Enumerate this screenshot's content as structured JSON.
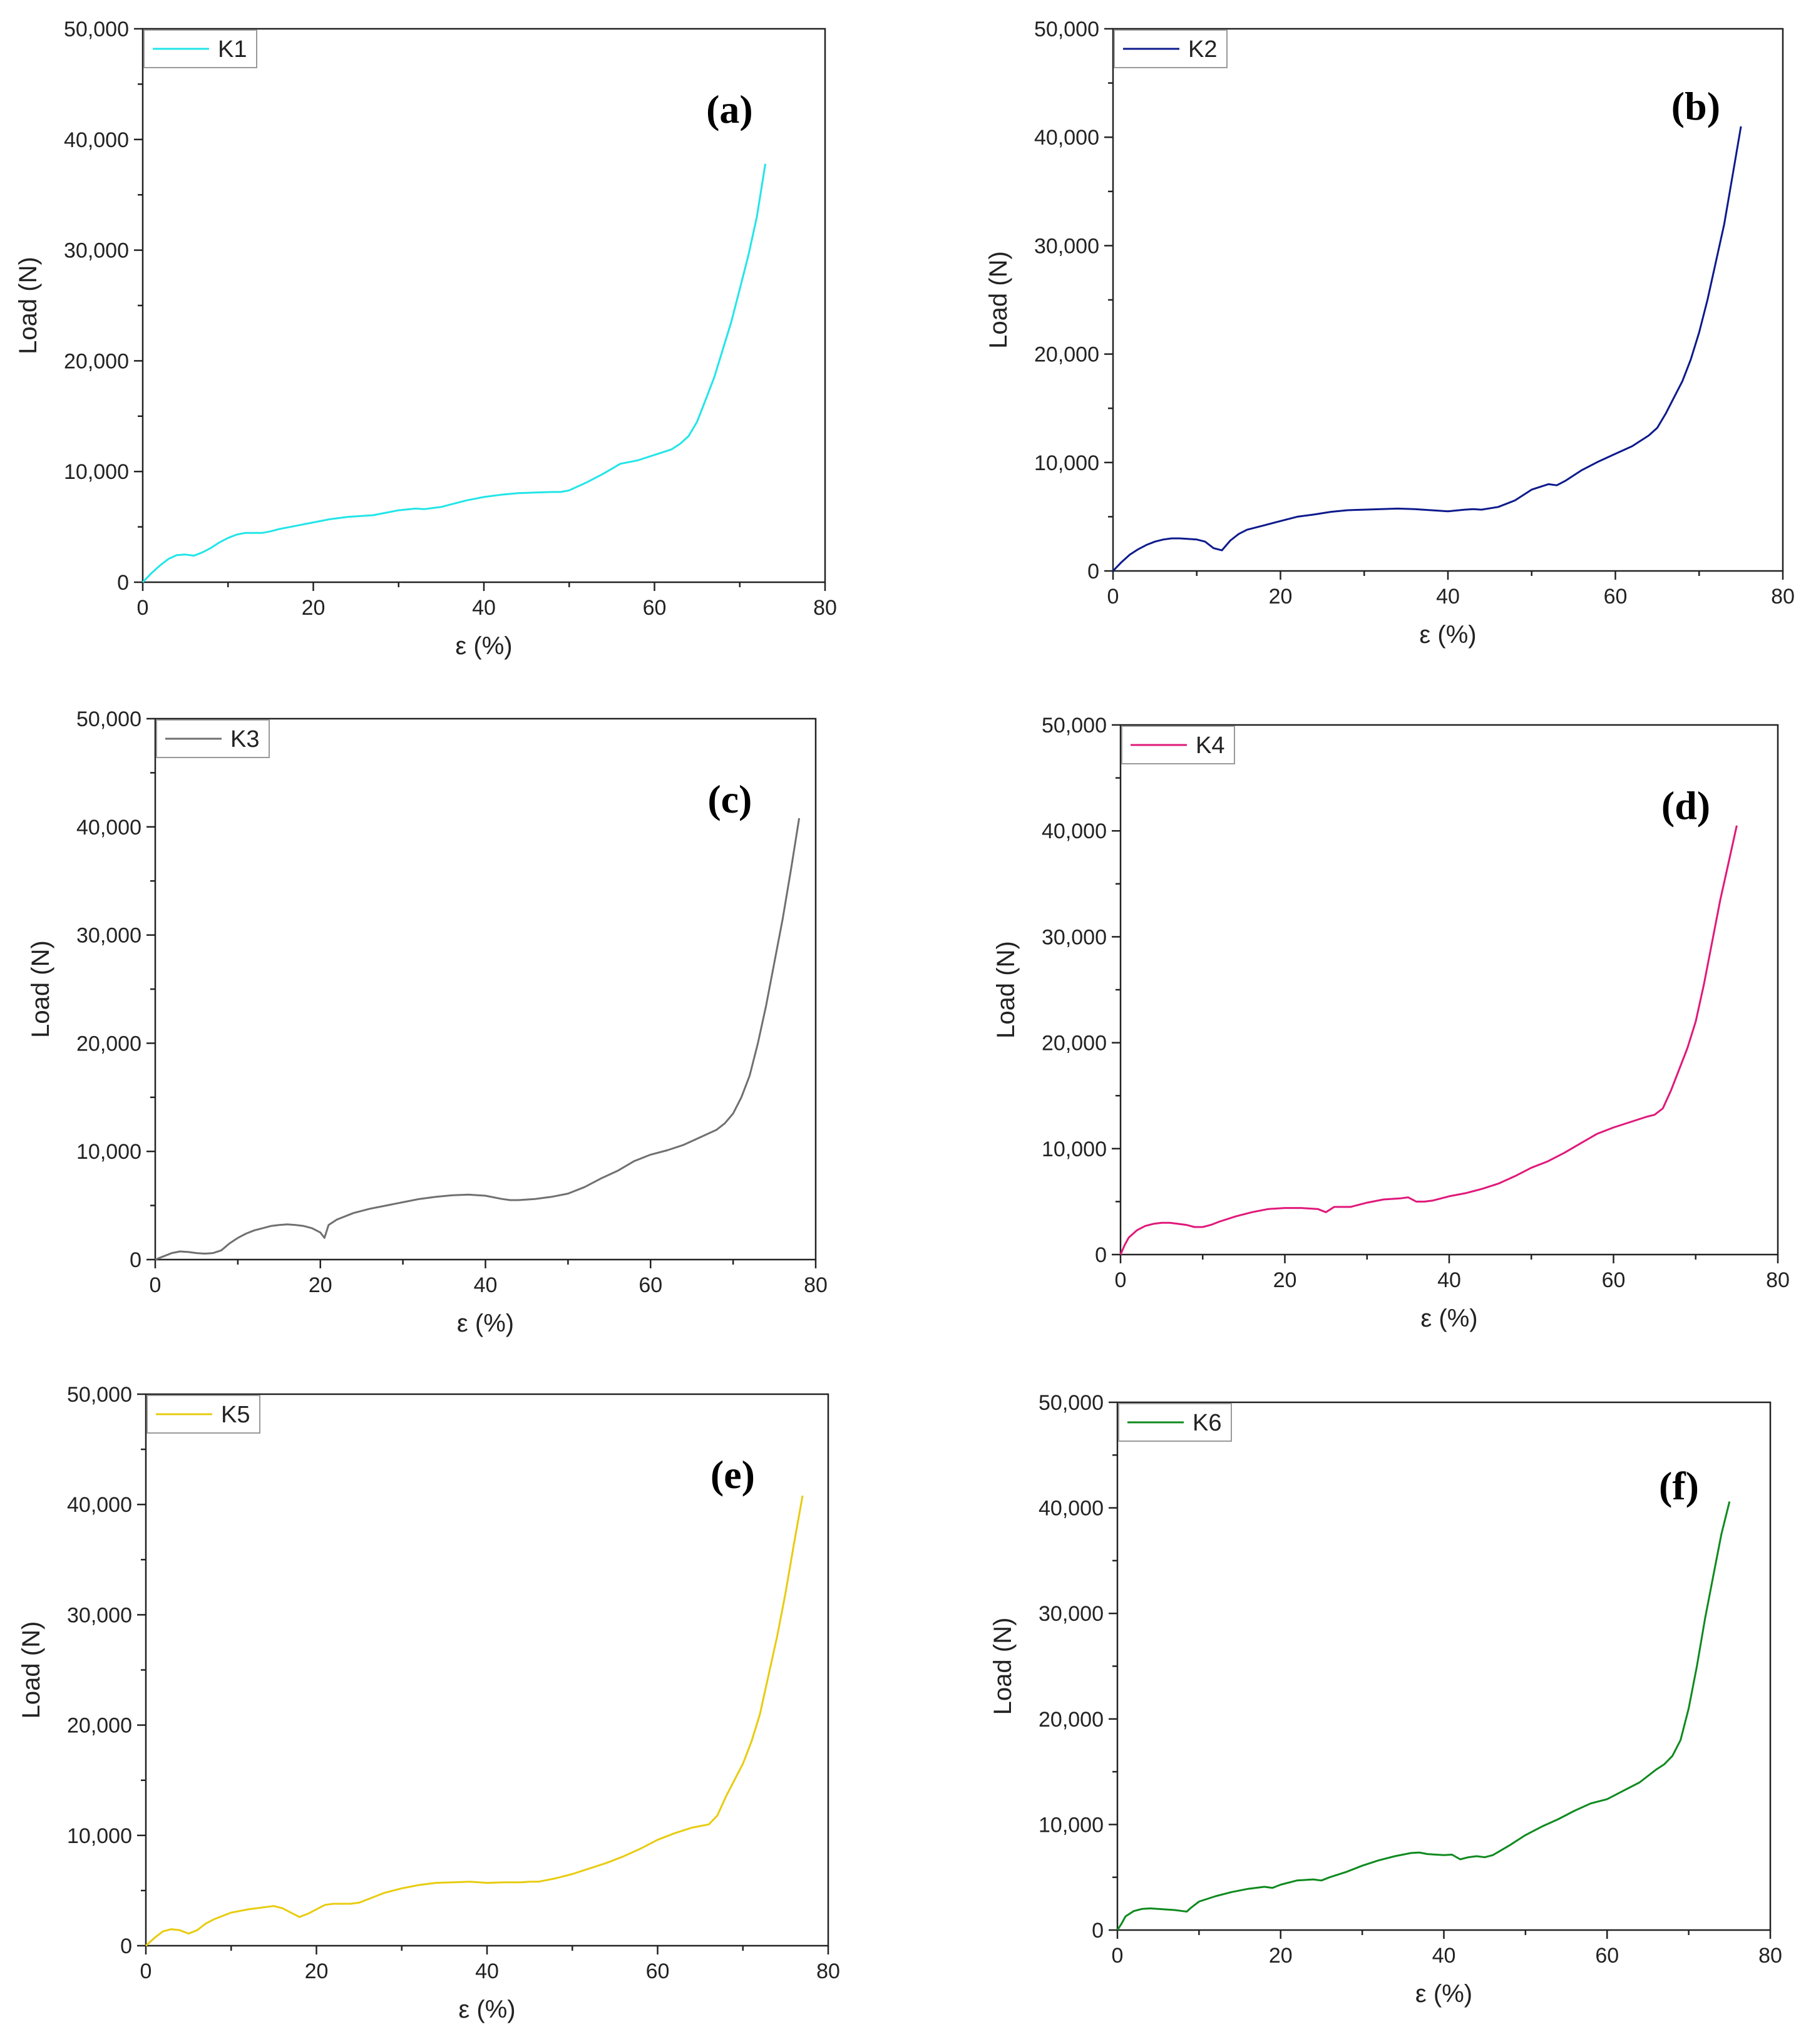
{
  "chart_data": [
    {
      "type": "line",
      "panel_label": "(a)",
      "series": [
        {
          "name": "K1",
          "color": "#22e5e8",
          "x": [
            0,
            1,
            2,
            3,
            4,
            5,
            6,
            7,
            8,
            9,
            10,
            11,
            12,
            13,
            14,
            15,
            16,
            18,
            20,
            22,
            24,
            26,
            27,
            28,
            30,
            32,
            33,
            34,
            35,
            36,
            38,
            40,
            42,
            44,
            46,
            48,
            49,
            50,
            52,
            54,
            56,
            58,
            60,
            62,
            63,
            64,
            65,
            66,
            67,
            68,
            69,
            70,
            71,
            72,
            73
          ],
          "y": [
            0,
            800,
            1500,
            2100,
            2450,
            2500,
            2400,
            2700,
            3100,
            3600,
            4000,
            4300,
            4450,
            4450,
            4450,
            4600,
            4800,
            5100,
            5400,
            5700,
            5900,
            6000,
            6050,
            6200,
            6500,
            6650,
            6600,
            6700,
            6800,
            7000,
            7400,
            7700,
            7900,
            8050,
            8100,
            8150,
            8150,
            8300,
            9000,
            9800,
            10700,
            11000,
            11500,
            12000,
            12500,
            13200,
            14500,
            16500,
            18500,
            21000,
            23500,
            26500,
            29500,
            33000,
            37800
          ]
        }
      ],
      "title": "",
      "xlabel": "ε (%)",
      "ylabel": "Load (N)",
      "xlim": [
        0,
        80
      ],
      "ylim": [
        0,
        50000
      ],
      "xticks": [
        "0",
        "20",
        "40",
        "60",
        "80"
      ],
      "yticks": [
        "0",
        "10,000",
        "20,000",
        "30,000",
        "40,000",
        "50,000"
      ],
      "legend_position": "top-left"
    },
    {
      "type": "line",
      "panel_label": "(b)",
      "series": [
        {
          "name": "K2",
          "color": "#0d1a8c",
          "x": [
            0,
            1,
            2,
            3,
            4,
            5,
            6,
            7,
            8,
            9,
            10,
            11,
            12,
            13,
            14,
            15,
            16,
            18,
            20,
            22,
            24,
            26,
            28,
            30,
            32,
            34,
            36,
            38,
            40,
            42,
            43,
            44,
            46,
            48,
            50,
            52,
            53,
            54,
            56,
            58,
            60,
            62,
            64,
            65,
            66,
            67,
            68,
            69,
            70,
            71,
            72,
            73,
            74,
            75
          ],
          "y": [
            0,
            800,
            1500,
            2000,
            2400,
            2700,
            2900,
            3000,
            3000,
            2950,
            2900,
            2700,
            2100,
            1900,
            2800,
            3400,
            3800,
            4200,
            4600,
            5000,
            5200,
            5450,
            5600,
            5650,
            5700,
            5750,
            5700,
            5600,
            5500,
            5650,
            5700,
            5650,
            5900,
            6500,
            7500,
            8000,
            7900,
            8300,
            9300,
            10100,
            10800,
            11500,
            12500,
            13200,
            14500,
            16000,
            17500,
            19500,
            22000,
            25000,
            28500,
            32000,
            36500,
            41000
          ]
        }
      ],
      "title": "",
      "xlabel": "ε (%)",
      "ylabel": "Load (N)",
      "xlim": [
        0,
        80
      ],
      "ylim": [
        0,
        50000
      ],
      "xticks": [
        "0",
        "20",
        "40",
        "60",
        "80"
      ],
      "yticks": [
        "0",
        "10,000",
        "20,000",
        "30,000",
        "40,000",
        "50,000"
      ],
      "legend_position": "top-left"
    },
    {
      "type": "line",
      "panel_label": "(c)",
      "series": [
        {
          "name": "K3",
          "color": "#707070",
          "x": [
            0,
            1,
            2,
            3,
            4,
            5,
            6,
            7,
            8,
            9,
            10,
            11,
            12,
            13,
            14,
            15,
            16,
            17,
            18,
            19,
            20,
            20.5,
            21,
            22,
            24,
            26,
            28,
            30,
            32,
            34,
            36,
            38,
            40,
            42,
            43,
            44,
            46,
            48,
            50,
            52,
            54,
            56,
            58,
            60,
            62,
            64,
            66,
            68,
            69,
            70,
            71,
            72,
            73,
            74,
            75,
            76,
            77,
            78
          ],
          "y": [
            0,
            300,
            600,
            750,
            700,
            600,
            550,
            600,
            850,
            1500,
            2000,
            2400,
            2700,
            2900,
            3100,
            3200,
            3250,
            3200,
            3100,
            2900,
            2500,
            2000,
            3200,
            3700,
            4300,
            4700,
            5000,
            5300,
            5600,
            5800,
            5950,
            6000,
            5900,
            5600,
            5500,
            5500,
            5600,
            5800,
            6100,
            6700,
            7500,
            8200,
            9100,
            9700,
            10100,
            10600,
            11300,
            12000,
            12600,
            13500,
            15000,
            17000,
            20000,
            23500,
            27500,
            31500,
            36000,
            40800
          ]
        }
      ],
      "title": "",
      "xlabel": "ε (%)",
      "ylabel": "Load (N)",
      "xlim": [
        0,
        80
      ],
      "ylim": [
        0,
        50000
      ],
      "xticks": [
        "0",
        "20",
        "40",
        "60",
        "80"
      ],
      "yticks": [
        "0",
        "10,000",
        "20,000",
        "30,000",
        "40,000",
        "50,000"
      ],
      "legend_position": "top-left"
    },
    {
      "type": "line",
      "panel_label": "(d)",
      "series": [
        {
          "name": "K4",
          "color": "#e0187a",
          "x": [
            0,
            0.5,
            1,
            2,
            3,
            4,
            5,
            6,
            7,
            8,
            9,
            10,
            11,
            12,
            14,
            16,
            18,
            20,
            22,
            24,
            25,
            26,
            28,
            30,
            32,
            34,
            35,
            36,
            37,
            38,
            40,
            42,
            43,
            44,
            46,
            48,
            50,
            52,
            54,
            56,
            58,
            60,
            62,
            64,
            65,
            66,
            67,
            68,
            69,
            70,
            71,
            72,
            73,
            74,
            75
          ],
          "y": [
            0,
            900,
            1600,
            2300,
            2700,
            2900,
            3000,
            3000,
            2900,
            2800,
            2600,
            2600,
            2800,
            3100,
            3600,
            4000,
            4300,
            4400,
            4400,
            4300,
            4000,
            4500,
            4500,
            4900,
            5200,
            5300,
            5400,
            5000,
            5000,
            5100,
            5500,
            5800,
            6000,
            6200,
            6700,
            7400,
            8200,
            8800,
            9600,
            10500,
            11400,
            12000,
            12500,
            13000,
            13200,
            13800,
            15500,
            17500,
            19500,
            22000,
            25500,
            29500,
            33500,
            37000,
            40500
          ]
        }
      ],
      "title": "",
      "xlabel": "ε (%)",
      "ylabel": "Load (N)",
      "xlim": [
        0,
        80
      ],
      "ylim": [
        0,
        50000
      ],
      "xticks": [
        "0",
        "20",
        "40",
        "60",
        "80"
      ],
      "yticks": [
        "0",
        "10,000",
        "20,000",
        "30,000",
        "40,000",
        "50,000"
      ],
      "legend_position": "top-left"
    },
    {
      "type": "line",
      "panel_label": "(e)",
      "series": [
        {
          "name": "K5",
          "color": "#e8cc10",
          "x": [
            0,
            1,
            2,
            3,
            4,
            5,
            6,
            7,
            8,
            10,
            12,
            14,
            15,
            16,
            17,
            18,
            19,
            20,
            21,
            22,
            23,
            24,
            25,
            26,
            28,
            30,
            32,
            34,
            36,
            38,
            40,
            42,
            44,
            45,
            46,
            48,
            50,
            52,
            54,
            56,
            58,
            60,
            62,
            64,
            66,
            67,
            68,
            69,
            70,
            71,
            72,
            73,
            74,
            75,
            76,
            77
          ],
          "y": [
            0,
            700,
            1300,
            1500,
            1400,
            1100,
            1400,
            2000,
            2400,
            3000,
            3300,
            3500,
            3600,
            3400,
            3000,
            2600,
            2900,
            3300,
            3700,
            3800,
            3800,
            3800,
            3900,
            4200,
            4800,
            5200,
            5500,
            5700,
            5750,
            5800,
            5700,
            5750,
            5750,
            5800,
            5800,
            6100,
            6500,
            7000,
            7500,
            8100,
            8800,
            9600,
            10200,
            10700,
            11000,
            11800,
            13500,
            15000,
            16500,
            18500,
            21000,
            24500,
            28000,
            32000,
            36500,
            40800
          ]
        }
      ],
      "title": "",
      "xlabel": "ε (%)",
      "ylabel": "Load (N)",
      "xlim": [
        0,
        80
      ],
      "ylim": [
        0,
        50000
      ],
      "xticks": [
        "0",
        "20",
        "40",
        "60",
        "80"
      ],
      "yticks": [
        "0",
        "10,000",
        "20,000",
        "30,000",
        "40,000",
        "50,000"
      ],
      "legend_position": "top-left"
    },
    {
      "type": "line",
      "panel_label": "(f)",
      "series": [
        {
          "name": "K6",
          "color": "#0e8a1e",
          "x": [
            0,
            0.5,
            1,
            2,
            3,
            4,
            5,
            6,
            7,
            8,
            8.5,
            9,
            10,
            12,
            14,
            16,
            18,
            19,
            20,
            22,
            24,
            25,
            26,
            28,
            30,
            32,
            34,
            36,
            37,
            38,
            40,
            41,
            42,
            43,
            44,
            45,
            46,
            48,
            50,
            52,
            54,
            56,
            58,
            60,
            62,
            64,
            66,
            67,
            68,
            69,
            70,
            71,
            72,
            73,
            74,
            75
          ],
          "y": [
            0,
            600,
            1300,
            1800,
            2000,
            2050,
            2000,
            1950,
            1900,
            1800,
            1750,
            2100,
            2700,
            3200,
            3600,
            3900,
            4100,
            4000,
            4300,
            4700,
            4800,
            4700,
            5000,
            5500,
            6100,
            6600,
            7000,
            7300,
            7350,
            7200,
            7100,
            7150,
            6700,
            6900,
            7000,
            6900,
            7100,
            8000,
            9000,
            9800,
            10500,
            11300,
            12000,
            12400,
            13200,
            14000,
            15200,
            15700,
            16500,
            18000,
            21000,
            25000,
            29500,
            33500,
            37500,
            40600
          ]
        }
      ],
      "title": "",
      "xlabel": "ε (%)",
      "ylabel": "Load (N)",
      "xlim": [
        0,
        80
      ],
      "ylim": [
        0,
        50000
      ],
      "xticks": [
        "0",
        "20",
        "40",
        "60",
        "80"
      ],
      "yticks": [
        "0",
        "10,000",
        "20,000",
        "30,000",
        "40,000",
        "50,000"
      ],
      "legend_position": "top-left"
    }
  ]
}
